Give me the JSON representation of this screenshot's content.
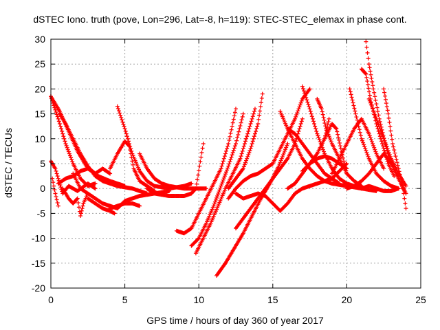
{
  "chart_data": {
    "type": "scatter",
    "title": "dSTEC Iono. truth (pove, Lon=296, Lat=-8, h=119): STEC-STEC_elemax in phase cont.",
    "xlabel": "GPS time / hours of day 360 of year 2017",
    "ylabel": "dSTEC  / TECUs",
    "xlim": [
      0,
      25
    ],
    "ylim": [
      -20,
      30
    ],
    "xticks": [
      0,
      5,
      10,
      15,
      20,
      25
    ],
    "yticks": [
      -20,
      -15,
      -10,
      -5,
      0,
      5,
      10,
      15,
      20,
      25,
      30
    ],
    "grid": true,
    "marker": "+",
    "color": "#ff0000",
    "series": [
      {
        "x": [
          0.0,
          0.5,
          1.0,
          1.5,
          2.0,
          2.5,
          3.0
        ],
        "y": [
          18.5,
          14,
          9,
          5,
          2,
          0.5,
          1
        ]
      },
      {
        "x": [
          0.0,
          0.6,
          1.2,
          1.8,
          2.4,
          3.2,
          4.0,
          5.0
        ],
        "y": [
          18.5,
          15.5,
          11.5,
          7.5,
          4.5,
          2.5,
          1.5,
          0.5
        ]
      },
      {
        "x": [
          0.6,
          1.0,
          1.5,
          2.0,
          2.5,
          3.0,
          3.5,
          4.0,
          4.5,
          5.5,
          6.5
        ],
        "y": [
          15,
          13,
          10,
          7,
          4.5,
          2.5,
          1.5,
          1,
          0.5,
          0,
          -1
        ]
      },
      {
        "x": [
          0.0,
          0.3,
          0.5,
          0.8,
          1.2,
          1.8,
          2.5,
          3.0
        ],
        "y": [
          5.5,
          4,
          2,
          -1,
          0.5,
          -0.5,
          1,
          0
        ]
      },
      {
        "x": [
          0.1,
          0.3,
          0.5
        ],
        "y": [
          2,
          -1,
          -3.5
        ]
      },
      {
        "x": [
          0.5,
          1.0,
          1.5,
          2.0,
          2.5,
          3.0,
          3.5,
          4.0
        ],
        "y": [
          1,
          2,
          2.5,
          3.5,
          4,
          3,
          4,
          3
        ]
      },
      {
        "x": [
          0.8,
          1.2,
          1.5,
          1.8,
          2.0,
          2.2,
          2.5
        ],
        "y": [
          0,
          -2,
          -3,
          -2,
          -5.5,
          -3,
          -1
        ]
      },
      {
        "x": [
          1.5,
          2.0,
          2.5,
          3.0,
          3.5,
          4.0,
          4.5,
          5.0,
          6.0,
          7.0,
          8.0
        ],
        "y": [
          3,
          0,
          -1,
          -2,
          -3,
          -3.5,
          -4,
          -2.5,
          -1.5,
          -1,
          -0.5
        ]
      },
      {
        "x": [
          2.5,
          3.0,
          3.5,
          4.0,
          4.3
        ],
        "y": [
          -2,
          -3,
          -4,
          -4.5,
          -5
        ]
      },
      {
        "x": [
          4.0,
          4.5,
          5.0,
          5.5,
          6.0
        ],
        "y": [
          -4,
          -3.5,
          -3,
          -3,
          -3.5
        ]
      },
      {
        "x": [
          4.0,
          4.5,
          5.0,
          5.3,
          5.6,
          6.0,
          6.5,
          7.0
        ],
        "y": [
          4,
          7,
          9.5,
          8.5,
          4,
          1.5,
          0.5,
          -0.5
        ]
      },
      {
        "x": [
          4.5,
          5.0,
          5.5,
          6.0,
          6.5,
          7.0,
          8.0,
          9.0,
          9.5
        ],
        "y": [
          16.5,
          12,
          7,
          3.5,
          1.5,
          0.5,
          0,
          0.5,
          1
        ]
      },
      {
        "x": [
          6.0,
          6.5,
          7.0,
          7.5,
          8.0,
          9.0,
          10.0,
          10.5
        ],
        "y": [
          7,
          4,
          2,
          1,
          0.5,
          0,
          0,
          0
        ]
      },
      {
        "x": [
          6.5,
          7.0,
          8.0,
          9.0,
          9.5,
          9.8,
          10.3
        ],
        "y": [
          0,
          -1,
          -1.5,
          -1.5,
          -1,
          0,
          9
        ]
      },
      {
        "x": [
          8.5,
          9.0,
          9.5,
          10.0,
          10.5,
          11.0,
          11.5,
          12.0,
          12.5
        ],
        "y": [
          -8.5,
          -9,
          -8,
          -5,
          -2,
          1,
          4,
          9,
          16
        ]
      },
      {
        "x": [
          9.5,
          10.0,
          10.5,
          11.0,
          11.5,
          12.0,
          12.5,
          13.0
        ],
        "y": [
          -11.5,
          -10,
          -7,
          -3.5,
          0.5,
          4.5,
          9,
          15
        ]
      },
      {
        "x": [
          9.8,
          10.3,
          10.8,
          11.3,
          11.8,
          12.3,
          12.8,
          13.3,
          13.8
        ],
        "y": [
          -13,
          -10,
          -7,
          -3.5,
          0,
          3,
          6,
          11,
          16
        ]
      },
      {
        "x": [
          11.2,
          11.8,
          12.4,
          13.0,
          13.6,
          14.2,
          14.8,
          15.4,
          16.0
        ],
        "y": [
          -17.5,
          -15,
          -12,
          -9,
          -5.5,
          -2,
          1,
          4.5,
          9
        ]
      },
      {
        "x": [
          12.5,
          13.0,
          13.5,
          14.0,
          14.5,
          15.0,
          15.5,
          16.0,
          16.5,
          17.0
        ],
        "y": [
          -8,
          -6,
          -4,
          -2,
          0,
          2,
          4,
          6,
          9,
          14
        ]
      },
      {
        "x": [
          12.0,
          12.5,
          13.0,
          13.5,
          14.0,
          14.5,
          15.0,
          15.5,
          16.0,
          16.5,
          17.0,
          17.5
        ],
        "y": [
          -2,
          0,
          1.5,
          2.5,
          3,
          4,
          5,
          8,
          11,
          14,
          18,
          20
        ]
      },
      {
        "x": [
          12.0,
          12.5,
          13.0,
          13.5,
          14.0,
          14.3
        ],
        "y": [
          0,
          2,
          4,
          8,
          13,
          19
        ]
      },
      {
        "x": [
          12.5,
          13.0,
          13.5,
          14.0,
          14.5,
          15.0,
          15.5,
          16.0,
          16.5,
          17.0,
          18.0,
          19.0,
          20.0
        ],
        "y": [
          -1,
          -2,
          -1.5,
          -1,
          -1.5,
          -3,
          -4.5,
          -3,
          -1,
          0,
          1,
          2,
          5
        ]
      },
      {
        "x": [
          15.5,
          16.0,
          16.5,
          17.0,
          17.5,
          18.0,
          18.5,
          19.0,
          20.0,
          21.0
        ],
        "y": [
          15.5,
          12,
          9,
          6,
          4,
          2.5,
          1.5,
          1,
          0.5,
          0
        ]
      },
      {
        "x": [
          16.0,
          16.5,
          17.0,
          17.5,
          18.0,
          18.5,
          19.0,
          19.5
        ],
        "y": [
          12,
          11,
          9,
          7,
          5,
          3,
          2,
          1
        ]
      },
      {
        "x": [
          17.0,
          17.5,
          18.0,
          18.5,
          19.0,
          19.5,
          20.0,
          20.5,
          21.0,
          22.0
        ],
        "y": [
          20.5,
          16,
          11,
          7,
          4,
          2,
          1,
          0.5,
          0,
          -0.5
        ]
      },
      {
        "x": [
          16.0,
          16.5,
          17.0,
          17.5,
          18.0,
          18.5,
          18.8
        ],
        "y": [
          0,
          1,
          3,
          5,
          7,
          10,
          14
        ]
      },
      {
        "x": [
          18.0,
          18.3,
          18.6,
          19.0,
          19.5,
          20.0,
          20.5,
          21.0
        ],
        "y": [
          18,
          16,
          12,
          9,
          6,
          3,
          1.5,
          0.5
        ]
      },
      {
        "x": [
          18.5,
          19.0,
          19.3,
          19.6,
          20.0
        ],
        "y": [
          10,
          13,
          12,
          8,
          3
        ]
      },
      {
        "x": [
          19.0,
          19.5,
          20.0,
          20.5,
          21.0,
          21.5,
          22.0,
          22.5
        ],
        "y": [
          3,
          6,
          9,
          12,
          14,
          11,
          7,
          4
        ]
      },
      {
        "x": [
          20.2,
          20.6,
          21.0,
          21.5,
          22.0,
          22.5,
          23.0,
          23.5
        ],
        "y": [
          20,
          15,
          10,
          6,
          3,
          1.5,
          0.5,
          0
        ]
      },
      {
        "x": [
          21.3,
          21.5,
          21.8,
          22.2,
          22.6,
          23.0,
          23.5,
          23.9
        ],
        "y": [
          29.5,
          25,
          20,
          14,
          9,
          5,
          2,
          -0.5
        ]
      },
      {
        "x": [
          21.0,
          21.3,
          21.6,
          22.0,
          22.4,
          22.8,
          23.2
        ],
        "y": [
          24,
          23,
          18,
          13,
          9,
          5,
          2.5
        ]
      },
      {
        "x": [
          21.5,
          22.0,
          22.5,
          23.0,
          23.5,
          24.0
        ],
        "y": [
          18,
          14,
          10,
          6,
          3,
          0.5
        ]
      },
      {
        "x": [
          20.0,
          20.5,
          21.0,
          21.5,
          22.0,
          22.5,
          23.0,
          23.5,
          24.0
        ],
        "y": [
          0,
          0.5,
          1.5,
          3,
          5,
          7,
          5,
          2,
          -1
        ]
      },
      {
        "x": [
          22.5,
          22.8,
          23.1,
          23.5,
          23.8,
          24.0
        ],
        "y": [
          20,
          15,
          9,
          4,
          0,
          -4
        ]
      },
      {
        "x": [
          17.0,
          17.5,
          18.0,
          18.5,
          19.0,
          19.5,
          20.0
        ],
        "y": [
          3.5,
          5,
          6,
          6.5,
          6,
          5,
          4
        ]
      },
      {
        "x": [
          21.0,
          21.5,
          22.0,
          22.5,
          23.0,
          23.5
        ],
        "y": [
          0,
          0.5,
          0,
          -0.5,
          -0.5,
          0
        ]
      }
    ]
  }
}
